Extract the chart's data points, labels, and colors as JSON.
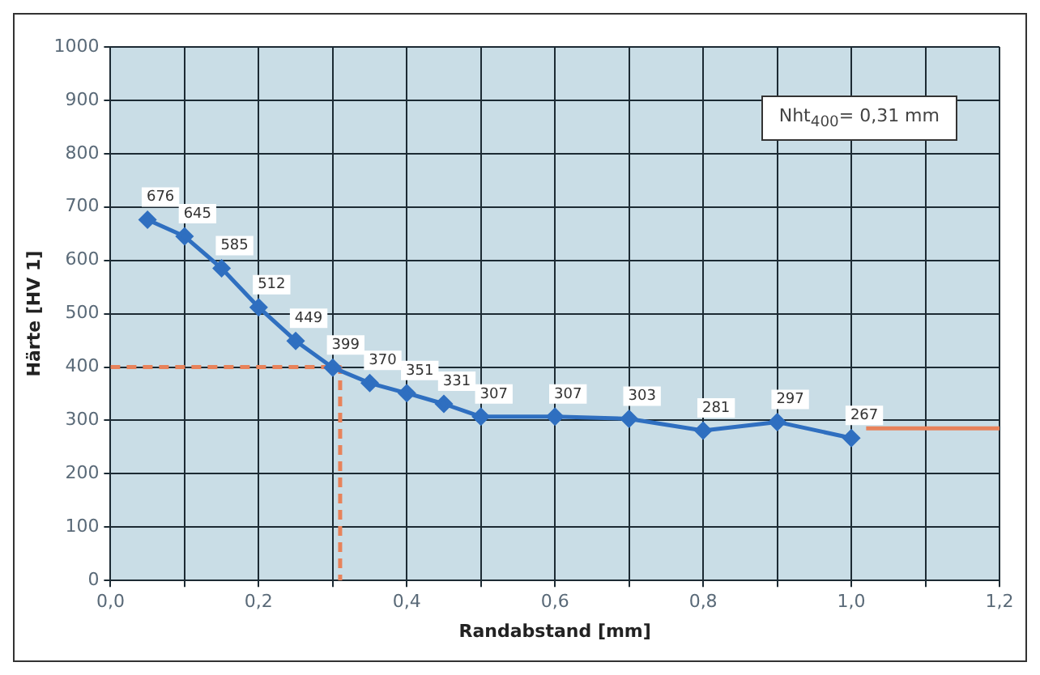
{
  "chart_data": {
    "type": "line",
    "xlabel": "Randabstand [mm]",
    "ylabel": "Härte [HV 1]",
    "annotations": [
      "Nht$_{400}$= 0,31 mm"
    ],
    "xlim": [
      0,
      1.2
    ],
    "xticks": [
      {
        "value": 0,
        "label": "0,0"
      },
      {
        "value": 0.1,
        "label": null
      },
      {
        "value": 0.2,
        "label": "0,2"
      },
      {
        "value": 0.3,
        "label": null
      },
      {
        "value": 0.4,
        "label": "0,4"
      },
      {
        "value": 0.5,
        "label": null
      },
      {
        "value": 0.6,
        "label": "0,6"
      },
      {
        "value": 0.7,
        "label": null
      },
      {
        "value": 0.8,
        "label": "0,8"
      },
      {
        "value": 0.9,
        "label": null
      },
      {
        "value": 1.0,
        "label": "1,0"
      },
      {
        "value": 1.1,
        "label": null
      },
      {
        "value": 1.2,
        "label": "1,2"
      }
    ],
    "ylim": [
      0,
      1000
    ],
    "yticks": [
      0,
      100,
      200,
      300,
      400,
      500,
      600,
      700,
      800,
      900,
      1000
    ],
    "grid": true,
    "legend": false,
    "marker": "diamond",
    "line_style": "solid",
    "series": [
      {
        "type": "line",
        "color": "#2f6fc0",
        "x": [
          0.05,
          0.1,
          0.15,
          0.2,
          0.25,
          0.3,
          0.35,
          0.4,
          0.45,
          0.5,
          0.6,
          0.7,
          0.8,
          0.9,
          1.0
        ],
        "values": [
          676,
          645,
          585,
          512,
          449,
          399,
          370,
          351,
          331,
          307,
          307,
          303,
          281,
          297,
          267
        ],
        "value_labels": [
          "676",
          "645",
          "585",
          "512",
          "449",
          "399",
          "370",
          "351",
          "331",
          "307",
          "307",
          "303",
          "281",
          "297",
          "267"
        ]
      },
      {
        "type": "line",
        "color": "#e8825a",
        "line_style": "dashed",
        "marker": "none",
        "x": [
          0,
          0.31,
          0.31
        ],
        "values": [
          400,
          400,
          0
        ]
      },
      {
        "type": "line",
        "color": "#e8825a",
        "marker": "none",
        "x": [
          1.02,
          1.2
        ],
        "values": [
          285,
          285
        ]
      }
    ]
  }
}
